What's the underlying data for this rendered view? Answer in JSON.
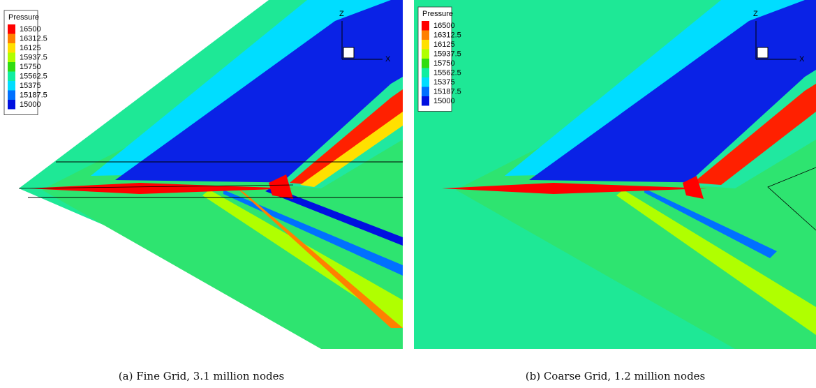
{
  "legend": {
    "title": "Pressure",
    "levels": [
      16500,
      16312.5,
      16125,
      15937.5,
      15750,
      15562.5,
      15375,
      15187.5,
      15000
    ],
    "colors": [
      "#ff0000",
      "#ff8000",
      "#ffe000",
      "#b0ff00",
      "#30dd10",
      "#10eea0",
      "#00ddff",
      "#0070ff",
      "#0010e0"
    ]
  },
  "axes": {
    "z": "Z",
    "x": "X"
  },
  "panels": [
    {
      "caption": "(a) Fine Grid, 3.1 million nodes"
    },
    {
      "caption": "(b) Coarse Grid, 1.2 million nodes"
    }
  ]
}
